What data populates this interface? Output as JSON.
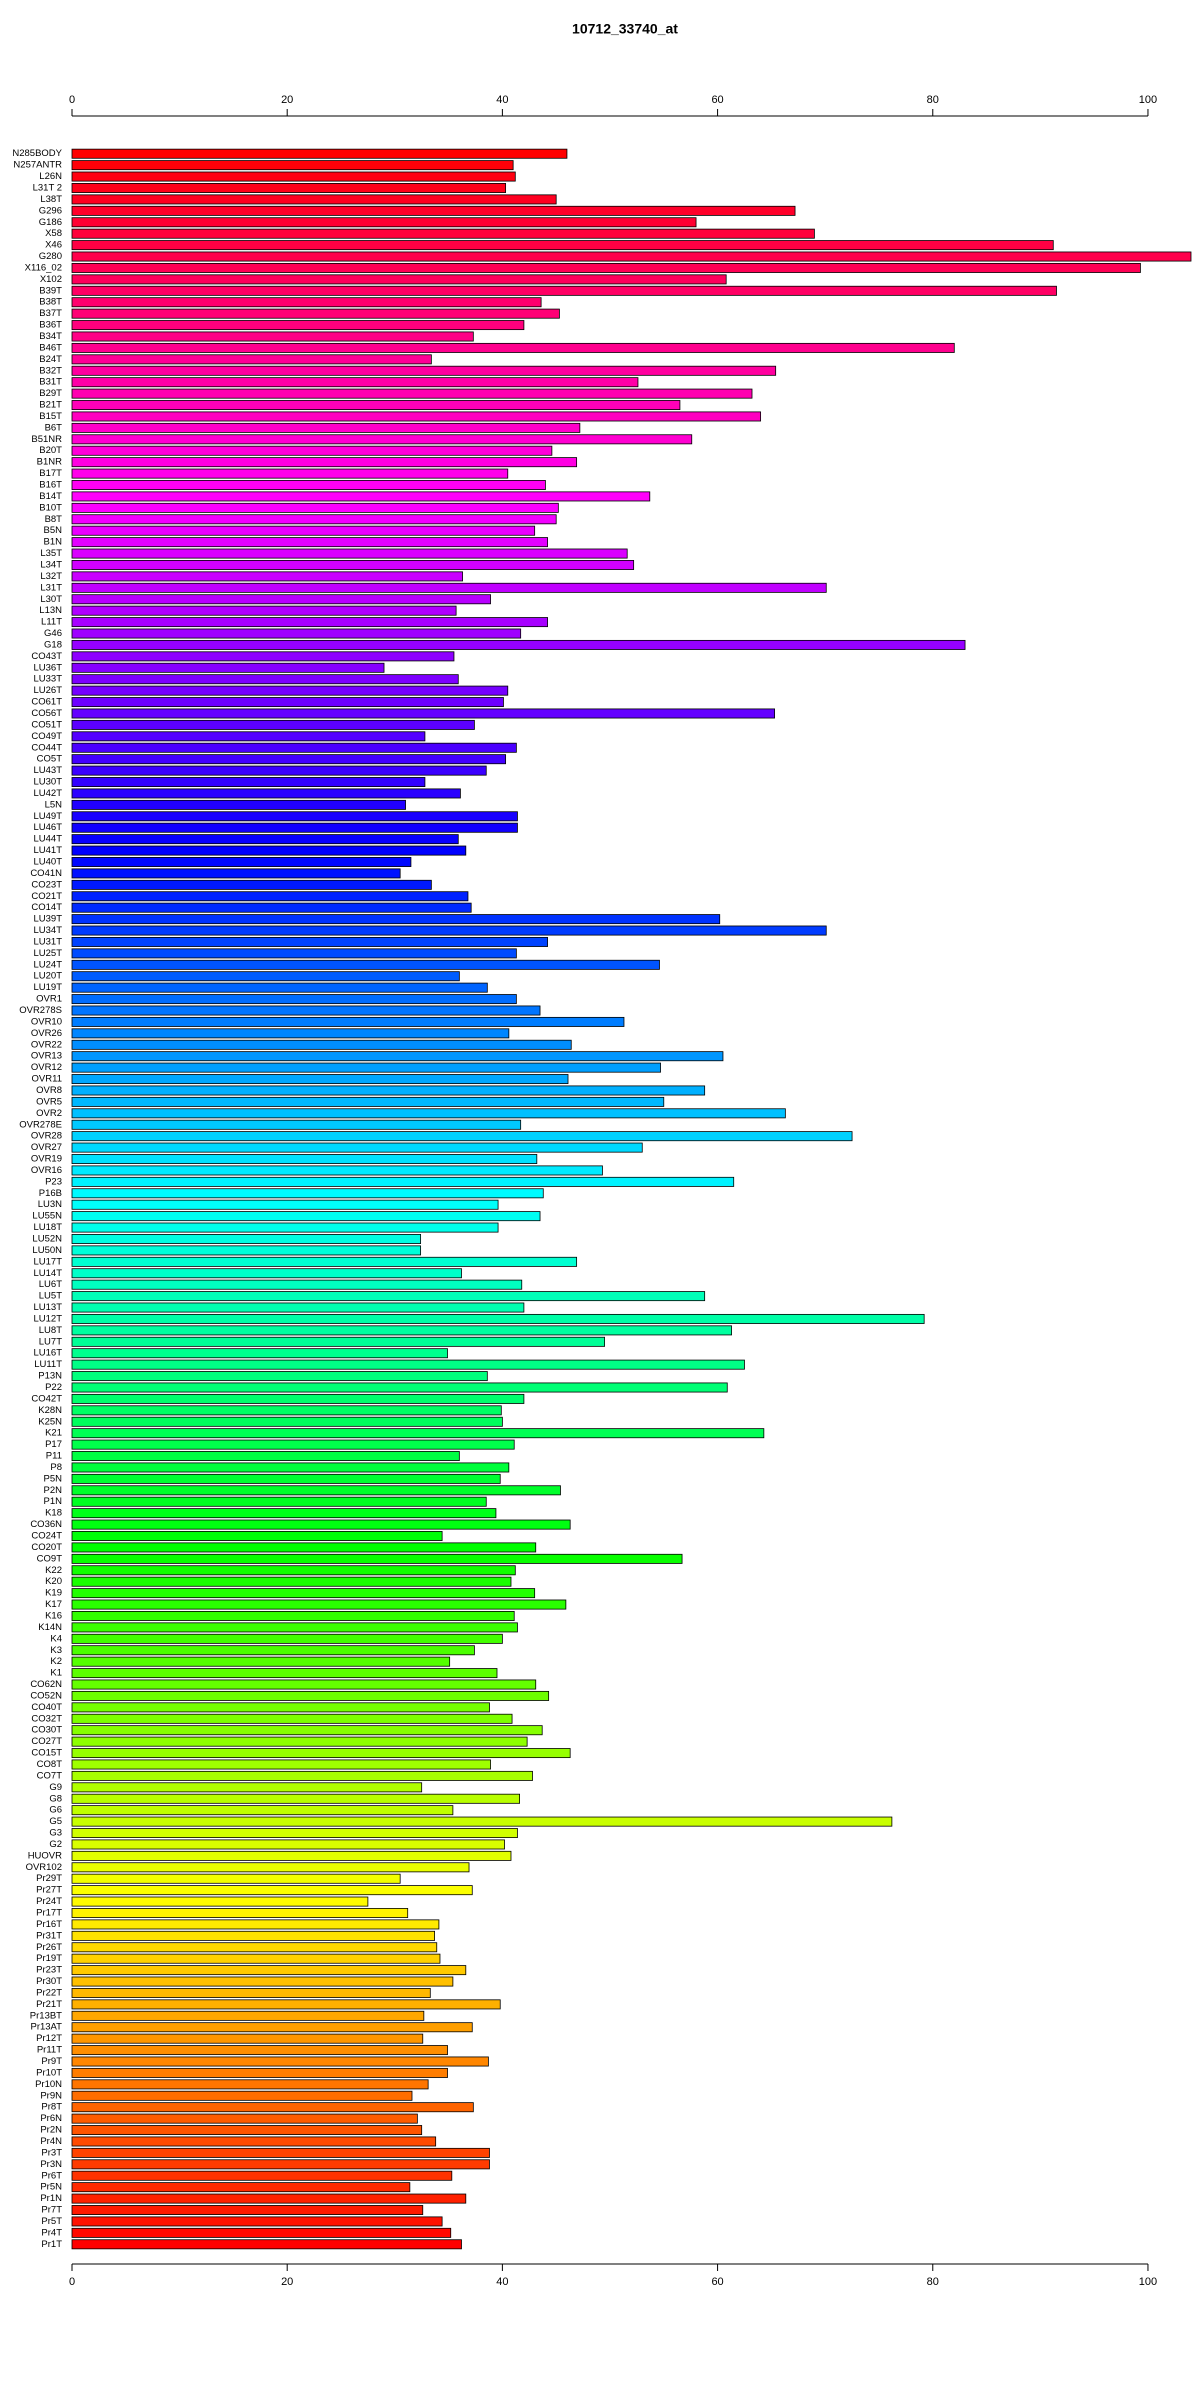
{
  "chart_data": {
    "type": "barh",
    "title": "10712_33740_at",
    "categories": [
      "N285BODY",
      "N257ANTR",
      "L26N",
      "L31T 2",
      "L38T",
      "G296",
      "G186",
      "X58",
      "X46",
      "G280",
      "X116_02",
      "X102",
      "B39T",
      "B38T",
      "B37T",
      "B36T",
      "B34T",
      "B46T",
      "B24T",
      "B32T",
      "B31T",
      "B29T",
      "B21T",
      "B15T",
      "B6T",
      "B51NR",
      "B20T",
      "B1NR",
      "B17T",
      "B16T",
      "B14T",
      "B10T",
      "B8T",
      "B5N",
      "B1N",
      "L35T",
      "L34T",
      "L32T",
      "L31T",
      "L30T",
      "L13N",
      "L11T",
      "G46",
      "G18",
      "CO43T",
      "LU36T",
      "LU33T",
      "LU26T",
      "CO61T",
      "CO56T",
      "CO51T",
      "CO49T",
      "CO44T",
      "CO5T",
      "LU43T",
      "LU30T",
      "LU42T",
      "L5N",
      "LU49T",
      "LU46T",
      "LU44T",
      "LU41T",
      "LU40T",
      "CO41N",
      "CO23T",
      "CO21T",
      "CO14T",
      "LU39T",
      "LU34T",
      "LU31T",
      "LU25T",
      "LU24T",
      "LU20T",
      "LU19T",
      "OVR1",
      "OVR278S",
      "OVR10",
      "OVR26",
      "OVR22",
      "OVR13",
      "OVR12",
      "OVR11",
      "OVR8",
      "OVR5",
      "OVR2",
      "OVR278E",
      "OVR28",
      "OVR27",
      "OVR19",
      "OVR16",
      "P23",
      "P16B",
      "LU3N",
      "LU55N",
      "LU18T",
      "LU52N",
      "LU50N",
      "LU17T",
      "LU14T",
      "LU6T",
      "LU5T",
      "LU13T",
      "LU12T",
      "LU8T",
      "LU7T",
      "LU16T",
      "LU11T",
      "P13N",
      "P22",
      "CO42T",
      "K28N",
      "K25N",
      "K21",
      "P17",
      "P11",
      "P8",
      "P5N",
      "P2N",
      "P1N",
      "K18",
      "CO36N",
      "CO24T",
      "CO20T",
      "CO9T",
      "K22",
      "K20",
      "K19",
      "K17",
      "K16",
      "K14N",
      "K4",
      "K3",
      "K2",
      "K1",
      "CO62N",
      "CO52N",
      "CO40T",
      "CO32T",
      "CO30T",
      "CO27T",
      "CO15T",
      "CO8T",
      "CO7T",
      "G9",
      "G8",
      "G6",
      "G5",
      "G3",
      "G2",
      "HUOVR",
      "OVR102",
      "Pr29T",
      "Pr27T",
      "Pr24T",
      "Pr17T",
      "Pr16T",
      "Pr31T",
      "Pr26T",
      "Pr19T",
      "Pr23T",
      "Pr30T",
      "Pr22T",
      "Pr21T",
      "Pr13BT",
      "Pr13AT",
      "Pr12T",
      "Pr11T",
      "Pr9T",
      "Pr10T",
      "Pr10N",
      "Pr9N",
      "Pr8T",
      "Pr6N",
      "Pr2N",
      "Pr4N",
      "Pr3T",
      "Pr3N",
      "Pr6T",
      "Pr5N",
      "Pr1N",
      "Pr7T",
      "Pr5T",
      "Pr4T",
      "Pr1T"
    ],
    "values": [
      46,
      41,
      41.2,
      40.3,
      45,
      67.2,
      58,
      69,
      91.2,
      104,
      99.3,
      60.8,
      91.5,
      43.6,
      45.3,
      42,
      37.3,
      82,
      33.4,
      65.4,
      52.6,
      63.2,
      56.5,
      64,
      47.2,
      57.6,
      44.6,
      46.9,
      40.5,
      44,
      53.7,
      45.2,
      45,
      43,
      44.2,
      51.6,
      52.2,
      36.3,
      70.1,
      38.9,
      35.7,
      44.2,
      41.7,
      83,
      35.5,
      29,
      35.9,
      40.5,
      40.1,
      65.3,
      37.4,
      32.8,
      41.3,
      40.3,
      38.5,
      32.8,
      36.1,
      31,
      41.4,
      41.4,
      35.9,
      36.6,
      31.5,
      30.5,
      33.4,
      36.8,
      37.1,
      60.2,
      70.1,
      44.2,
      41.3,
      54.6,
      36,
      38.6,
      41.3,
      43.5,
      51.3,
      40.6,
      46.4,
      60.5,
      54.7,
      46.1,
      58.8,
      55,
      66.3,
      41.7,
      72.5,
      53,
      43.2,
      49.3,
      61.5,
      43.8,
      39.6,
      43.5,
      39.6,
      32.4,
      32.4,
      46.9,
      36.2,
      41.8,
      58.8,
      42,
      79.2,
      61.3,
      49.5,
      34.9,
      62.5,
      38.6,
      60.9,
      42,
      39.9,
      40,
      64.3,
      41.1,
      36,
      40.6,
      39.8,
      45.4,
      38.5,
      39.4,
      46.3,
      34.4,
      43.1,
      56.7,
      41.2,
      40.8,
      43,
      45.9,
      41.1,
      41.4,
      40,
      37.4,
      35.1,
      39.5,
      43.1,
      44.3,
      38.8,
      40.9,
      43.7,
      42.3,
      46.3,
      38.9,
      42.8,
      32.5,
      41.6,
      35.4,
      76.2,
      41.4,
      40.2,
      40.8,
      36.9,
      30.5,
      37.2,
      27.5,
      31.2,
      34.1,
      33.7,
      33.9,
      34.2,
      36.6,
      35.4,
      33.3,
      39.8,
      32.7,
      37.2,
      32.6,
      34.9,
      38.7,
      34.9,
      33.1,
      31.6,
      37.3,
      32.1,
      32.5,
      33.8,
      38.8,
      38.8,
      35.3,
      31.4,
      36.6,
      32.6,
      34.4,
      35.2,
      36.2
    ],
    "palette": "rainbow",
    "edgecolor": "#000000",
    "xlim": [
      0,
      104
    ],
    "xticks": [
      0,
      20,
      40,
      60,
      80,
      100
    ]
  }
}
